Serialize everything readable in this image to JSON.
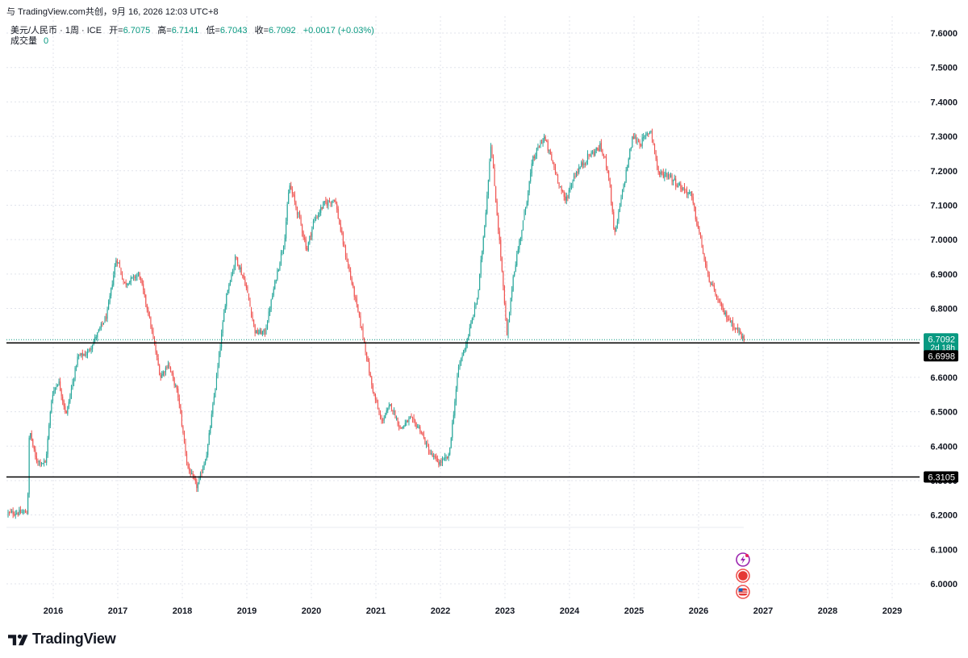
{
  "header": {
    "source_line": "与 TradingView.com共创，9月 16, 2026 12:03 UTC+8"
  },
  "legend": {
    "symbol": "美元/人民币 · 1周 · ICE",
    "open_label": "开=",
    "open": "6.7075",
    "high_label": "高=",
    "high": "6.7141",
    "low_label": "低=",
    "low": "6.7043",
    "close_label": "收=",
    "close": "6.7092",
    "change": "+0.0017 (+0.03%)",
    "volume_label": "成交量",
    "volume": "0"
  },
  "price_tags": {
    "last_price": "6.7092",
    "countdown": "2d 18h",
    "line_upper": "6.6998",
    "line_lower": "6.3105"
  },
  "brand": {
    "name": "TradingView"
  },
  "colors": {
    "up": "#26a69a",
    "down": "#ef5350",
    "tag_last": "#089981",
    "hline": "#000000",
    "grid": "#e0e3eb"
  },
  "chart_data": {
    "type": "candlestick",
    "y_range": [
      5.96,
      7.62
    ],
    "y_ticks": [
      "7.6000",
      "7.5000",
      "7.4000",
      "7.3000",
      "7.2000",
      "7.1000",
      "7.0000",
      "6.9000",
      "6.8000",
      "6.7000",
      "6.6000",
      "6.5000",
      "6.4000",
      "6.3000",
      "6.2000",
      "6.1000",
      "6.0000"
    ],
    "x_range": [
      2015.3,
      2029.5
    ],
    "x_ticks": [
      "2016",
      "2017",
      "2018",
      "2019",
      "2020",
      "2021",
      "2022",
      "2023",
      "2024",
      "2025",
      "2026",
      "2027",
      "2028",
      "2029"
    ],
    "horizontal_lines": [
      6.6998,
      6.3105
    ],
    "price_path": [
      [
        2015.3,
        6.205
      ],
      [
        2015.62,
        6.208
      ],
      [
        2015.65,
        6.45
      ],
      [
        2015.75,
        6.36
      ],
      [
        2015.9,
        6.35
      ],
      [
        2016.0,
        6.55
      ],
      [
        2016.1,
        6.59
      ],
      [
        2016.22,
        6.49
      ],
      [
        2016.4,
        6.66
      ],
      [
        2016.55,
        6.67
      ],
      [
        2016.85,
        6.78
      ],
      [
        2017.0,
        6.95
      ],
      [
        2017.12,
        6.87
      ],
      [
        2017.35,
        6.9
      ],
      [
        2017.5,
        6.78
      ],
      [
        2017.68,
        6.6
      ],
      [
        2017.8,
        6.64
      ],
      [
        2017.95,
        6.55
      ],
      [
        2018.1,
        6.34
      ],
      [
        2018.25,
        6.28
      ],
      [
        2018.4,
        6.38
      ],
      [
        2018.55,
        6.6
      ],
      [
        2018.7,
        6.84
      ],
      [
        2018.85,
        6.95
      ],
      [
        2019.0,
        6.87
      ],
      [
        2019.15,
        6.73
      ],
      [
        2019.3,
        6.73
      ],
      [
        2019.45,
        6.87
      ],
      [
        2019.6,
        7.0
      ],
      [
        2019.68,
        7.16
      ],
      [
        2019.85,
        7.05
      ],
      [
        2019.95,
        6.97
      ],
      [
        2020.05,
        7.05
      ],
      [
        2020.2,
        7.1
      ],
      [
        2020.38,
        7.12
      ],
      [
        2020.5,
        7.0
      ],
      [
        2020.65,
        6.87
      ],
      [
        2020.82,
        6.72
      ],
      [
        2020.95,
        6.58
      ],
      [
        2021.1,
        6.47
      ],
      [
        2021.25,
        6.52
      ],
      [
        2021.4,
        6.45
      ],
      [
        2021.55,
        6.48
      ],
      [
        2021.7,
        6.45
      ],
      [
        2021.85,
        6.38
      ],
      [
        2022.0,
        6.35
      ],
      [
        2022.15,
        6.37
      ],
      [
        2022.3,
        6.63
      ],
      [
        2022.45,
        6.72
      ],
      [
        2022.6,
        6.84
      ],
      [
        2022.73,
        7.1
      ],
      [
        2022.8,
        7.28
      ],
      [
        2022.95,
        6.96
      ],
      [
        2023.05,
        6.72
      ],
      [
        2023.15,
        6.9
      ],
      [
        2023.3,
        7.05
      ],
      [
        2023.45,
        7.23
      ],
      [
        2023.62,
        7.3
      ],
      [
        2023.78,
        7.21
      ],
      [
        2023.95,
        7.11
      ],
      [
        2024.1,
        7.19
      ],
      [
        2024.3,
        7.24
      ],
      [
        2024.5,
        7.27
      ],
      [
        2024.62,
        7.2
      ],
      [
        2024.72,
        7.01
      ],
      [
        2024.85,
        7.15
      ],
      [
        2025.0,
        7.3
      ],
      [
        2025.12,
        7.28
      ],
      [
        2025.28,
        7.32
      ],
      [
        2025.4,
        7.19
      ],
      [
        2025.55,
        7.19
      ],
      [
        2025.7,
        7.16
      ],
      [
        2025.9,
        7.13
      ],
      [
        2026.05,
        7.0
      ],
      [
        2026.15,
        6.9
      ],
      [
        2026.28,
        6.84
      ],
      [
        2026.4,
        6.79
      ],
      [
        2026.52,
        6.76
      ],
      [
        2026.65,
        6.73
      ],
      [
        2026.72,
        6.709
      ]
    ]
  }
}
